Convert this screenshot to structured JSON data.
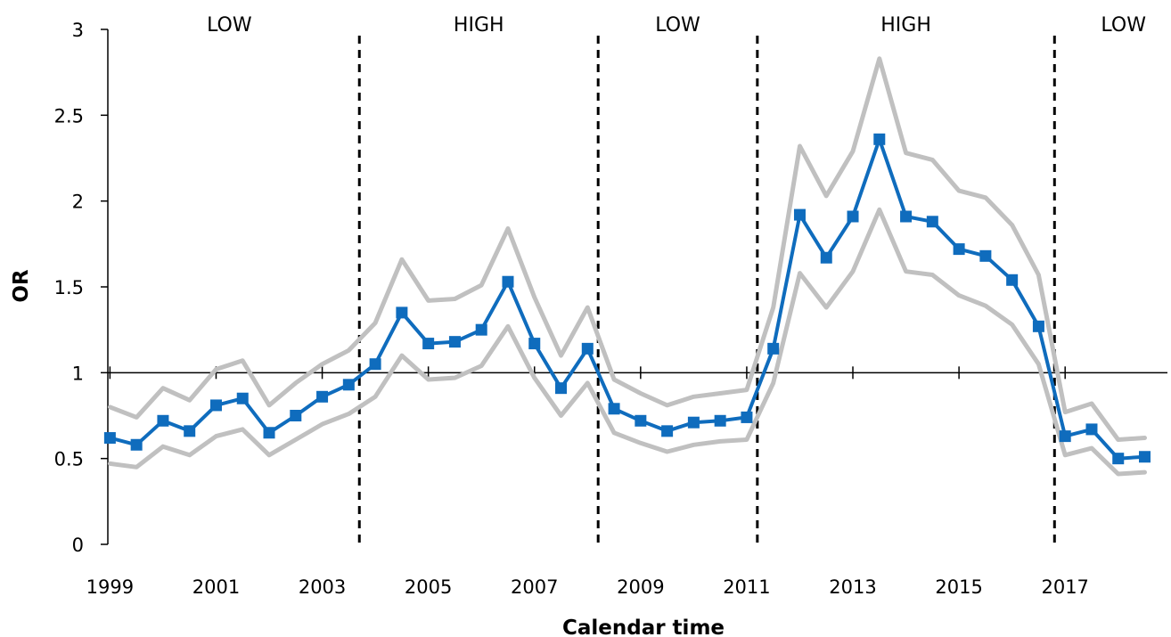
{
  "chart_data": {
    "type": "line",
    "xlabel": "Calendar time",
    "ylabel": "OR",
    "ylim": [
      0,
      3
    ],
    "yticks": [
      {
        "value": 0,
        "label": "0"
      },
      {
        "value": 0.5,
        "label": "0.5"
      },
      {
        "value": 1,
        "label": "1"
      },
      {
        "value": 1.5,
        "label": "1.5"
      },
      {
        "value": 2,
        "label": "2"
      },
      {
        "value": 2.5,
        "label": "2.5"
      },
      {
        "value": 3,
        "label": "3"
      }
    ],
    "xlim": [
      1998.96,
      2018.76
    ],
    "xticks": [
      {
        "value": 1999,
        "label": "1999"
      },
      {
        "value": 2001,
        "label": "2001"
      },
      {
        "value": 2003,
        "label": "2003"
      },
      {
        "value": 2005,
        "label": "2005"
      },
      {
        "value": 2007,
        "label": "2007"
      },
      {
        "value": 2009,
        "label": "2009"
      },
      {
        "value": 2011,
        "label": "2011"
      },
      {
        "value": 2013,
        "label": "2013"
      },
      {
        "value": 2015,
        "label": "2015"
      },
      {
        "value": 2017,
        "label": "2017"
      }
    ],
    "reference_line": 1,
    "grid": false,
    "x": [
      1999.0,
      1999.5,
      2000.0,
      2000.5,
      2001.0,
      2001.5,
      2002.0,
      2002.5,
      2003.0,
      2003.5,
      2004.0,
      2004.5,
      2005.0,
      2005.5,
      2006.0,
      2006.5,
      2007.0,
      2007.5,
      2008.0,
      2008.5,
      2009.0,
      2009.5,
      2010.0,
      2010.5,
      2011.0,
      2011.5,
      2012.0,
      2012.5,
      2013.0,
      2013.5,
      2014.0,
      2014.5,
      2015.0,
      2015.5,
      2016.0,
      2016.5,
      2017.0,
      2017.5,
      2018.0,
      2018.5
    ],
    "series": [
      {
        "role": "upper",
        "color": "#c0c0c0",
        "values": [
          0.8,
          0.74,
          0.91,
          0.84,
          1.02,
          1.07,
          0.81,
          0.94,
          1.05,
          1.13,
          1.29,
          1.66,
          1.42,
          1.43,
          1.51,
          1.84,
          1.44,
          1.1,
          1.38,
          0.96,
          0.88,
          0.81,
          0.86,
          0.88,
          0.9,
          1.38,
          2.32,
          2.03,
          2.29,
          2.83,
          2.28,
          2.24,
          2.06,
          2.02,
          1.86,
          1.57,
          0.77,
          0.82,
          0.61,
          0.62
        ]
      },
      {
        "role": "estimate",
        "color": "#0f6cbd",
        "values": [
          0.62,
          0.58,
          0.72,
          0.66,
          0.81,
          0.85,
          0.65,
          0.75,
          0.86,
          0.93,
          1.05,
          1.35,
          1.17,
          1.18,
          1.25,
          1.53,
          1.17,
          0.91,
          1.14,
          0.79,
          0.72,
          0.66,
          0.71,
          0.72,
          0.74,
          1.14,
          1.92,
          1.67,
          1.91,
          2.36,
          1.91,
          1.88,
          1.72,
          1.68,
          1.54,
          1.27,
          0.63,
          0.67,
          0.5,
          0.51
        ]
      },
      {
        "role": "lower",
        "color": "#c0c0c0",
        "values": [
          0.47,
          0.45,
          0.57,
          0.52,
          0.63,
          0.67,
          0.52,
          0.61,
          0.7,
          0.76,
          0.86,
          1.1,
          0.96,
          0.97,
          1.04,
          1.27,
          0.97,
          0.75,
          0.94,
          0.65,
          0.59,
          0.54,
          0.58,
          0.6,
          0.61,
          0.94,
          1.58,
          1.38,
          1.59,
          1.95,
          1.59,
          1.57,
          1.45,
          1.39,
          1.28,
          1.05,
          0.52,
          0.56,
          0.41,
          0.42
        ]
      }
    ],
    "period_boundaries": [
      2003.7,
      2008.2,
      2011.2,
      2016.8
    ],
    "periods": [
      {
        "label": "LOW",
        "center": 2001.25
      },
      {
        "label": "HIGH",
        "center": 2005.95
      },
      {
        "label": "LOW",
        "center": 2009.7
      },
      {
        "label": "HIGH",
        "center": 2014.0
      },
      {
        "label": "LOW",
        "center": 2018.1
      }
    ]
  }
}
